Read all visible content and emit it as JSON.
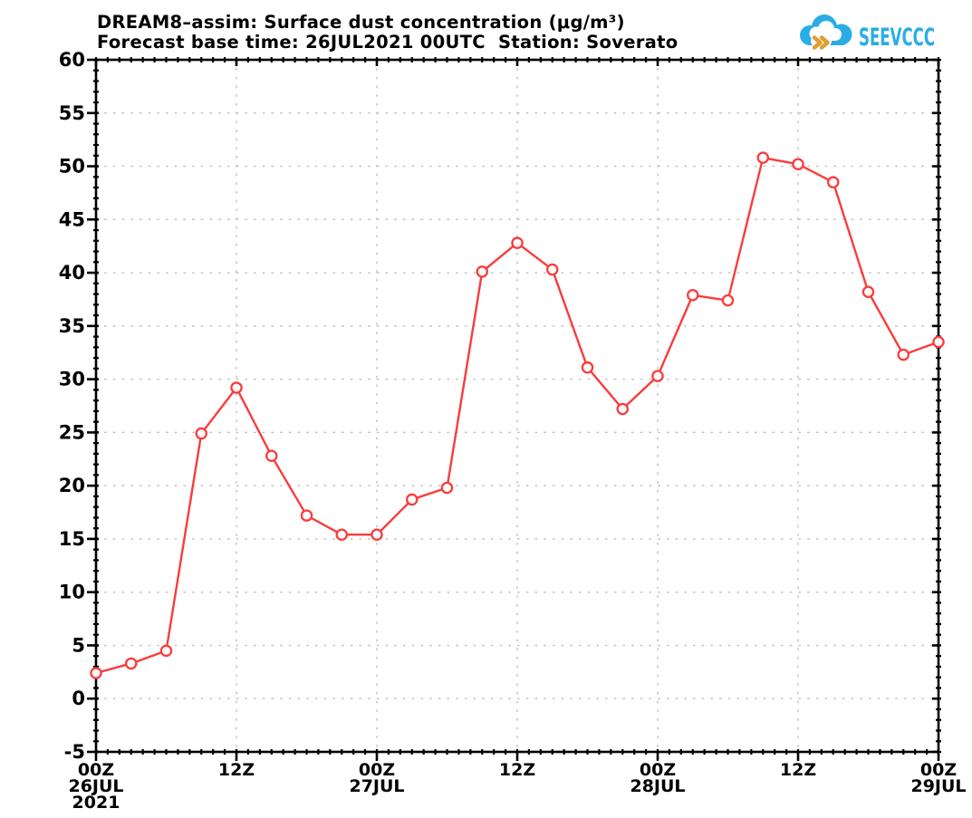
{
  "header": {
    "title_line1": "DREAM8–assim: Surface dust concentration (μg/m³)",
    "title_line2": "Forecast base time: 26JUL2021 00UTC  Station: Soverato",
    "logo_text": "SEEVCCC"
  },
  "colors": {
    "background": "#ffffff",
    "series": "#fa3c3c",
    "marker_fill": "#ffffff",
    "grid": "#c3c3c3",
    "axis": "#000000",
    "logo_blue": "#29ade4",
    "logo_gold": "#dfa032"
  },
  "chart_data": {
    "type": "line",
    "title": "DREAM8–assim: Surface dust concentration (μg/m³)",
    "subtitle": "Forecast base time: 26JUL2021 00UTC  Station: Soverato",
    "station": "Soverato",
    "forecast_base_time": "26JUL2021 00UTC",
    "ylabel": "",
    "xlabel": "",
    "grid": "dotted",
    "legend": null,
    "marker": "open-circle",
    "ylim": [
      -5,
      60
    ],
    "y_major_step": 5,
    "y_minor_step": 1,
    "xlim_hours": [
      0,
      72
    ],
    "x_major_step_hours": 12,
    "x_minor_step_hours": 1,
    "y_tick_values": [
      60,
      55,
      50,
      45,
      40,
      35,
      30,
      25,
      20,
      15,
      10,
      5,
      0,
      -5
    ],
    "y_tick_labels": [
      "60",
      "55",
      "50",
      "45",
      "40",
      "35",
      "30",
      "25",
      "20",
      "15",
      "10",
      "5",
      "0",
      "-5"
    ],
    "x_major_labels": [
      {
        "hour": 0,
        "lines": [
          "00Z",
          "26JUL",
          "2021"
        ]
      },
      {
        "hour": 12,
        "lines": [
          "12Z"
        ]
      },
      {
        "hour": 24,
        "lines": [
          "00Z",
          "27JUL"
        ]
      },
      {
        "hour": 36,
        "lines": [
          "12Z"
        ]
      },
      {
        "hour": 48,
        "lines": [
          "00Z",
          "28JUL"
        ]
      },
      {
        "hour": 60,
        "lines": [
          "12Z"
        ]
      },
      {
        "hour": 72,
        "lines": [
          "00Z",
          "29JUL"
        ]
      }
    ],
    "x_hours": [
      0,
      3,
      6,
      9,
      12,
      15,
      18,
      21,
      24,
      27,
      30,
      33,
      36,
      39,
      42,
      45,
      48,
      51,
      54,
      57,
      60,
      63,
      66,
      69,
      72
    ],
    "values": [
      2.4,
      3.3,
      4.5,
      24.9,
      29.2,
      22.8,
      17.2,
      15.4,
      15.4,
      18.7,
      19.8,
      40.1,
      42.8,
      40.3,
      31.1,
      27.2,
      30.3,
      37.9,
      37.4,
      50.8,
      50.2,
      48.5,
      38.2,
      32.3,
      33.5
    ]
  }
}
